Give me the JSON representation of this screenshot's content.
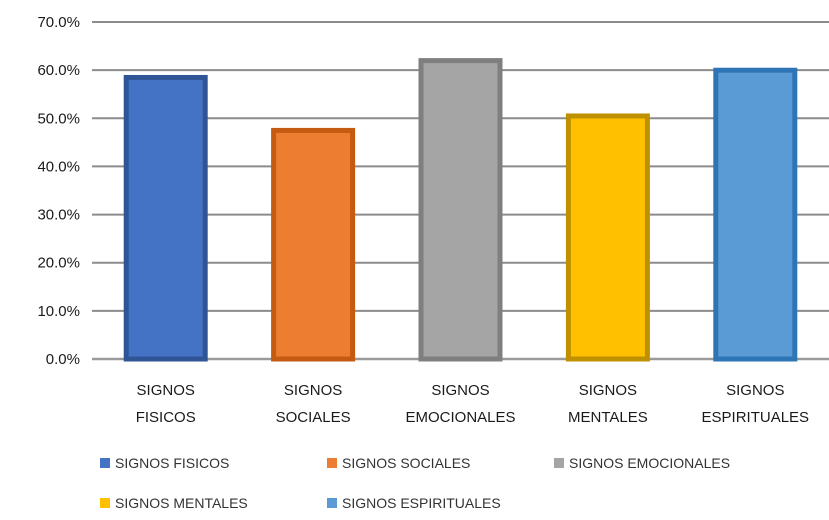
{
  "chart_data": {
    "type": "bar",
    "categories": [
      [
        "SIGNOS",
        "FISICOS"
      ],
      [
        "SIGNOS",
        "SOCIALES"
      ],
      [
        "SIGNOS",
        "EMOCIONALES"
      ],
      [
        "SIGNOS",
        "MENTALES"
      ],
      [
        "SIGNOS",
        "ESPIRITUALES"
      ]
    ],
    "values": [
      59.0,
      48.0,
      62.5,
      51.0,
      60.5
    ],
    "ylim": [
      0,
      70
    ],
    "yticks": [
      "0.0%",
      "10.0%",
      "20.0%",
      "30.0%",
      "40.0%",
      "50.0%",
      "60.0%",
      "70.0%"
    ],
    "ytick_values": [
      0,
      10,
      20,
      30,
      40,
      50,
      60,
      70
    ],
    "grid": true,
    "legend_position": "bottom",
    "colors": [
      "#4472c4",
      "#ed7d31",
      "#a5a5a5",
      "#ffc000",
      "#5b9bd5"
    ],
    "border_colors": [
      "#2f5597",
      "#c55a11",
      "#7f7f7f",
      "#bf9000",
      "#2e75b6"
    ],
    "legend": [
      "SIGNOS FISICOS",
      "SIGNOS SOCIALES",
      "SIGNOS EMOCIONALES",
      "SIGNOS MENTALES",
      "SIGNOS ESPIRITUALES"
    ]
  }
}
